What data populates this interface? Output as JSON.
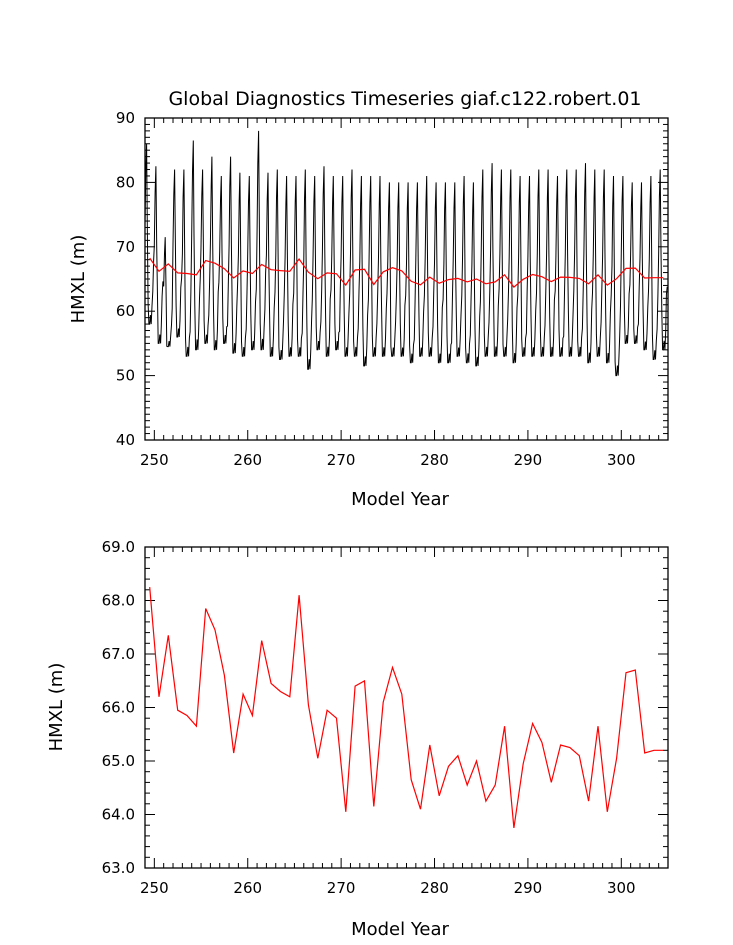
{
  "chart_data": [
    {
      "type": "line",
      "title": "Global Diagnostics Timeseries giaf.c122.robert.01",
      "xlabel": "Model Year",
      "ylabel": "HMXL (m)",
      "xlim": [
        249,
        305
      ],
      "ylim": [
        40,
        90
      ],
      "x_ticks": [
        "250",
        "260",
        "270",
        "280",
        "290",
        "300"
      ],
      "y_ticks": [
        "40",
        "50",
        "60",
        "70",
        "80",
        "90"
      ],
      "grid": false,
      "series": [
        {
          "color": "#000000",
          "style": "monthly",
          "x_start": 249.0,
          "dx": 0.083333,
          "amplitude_note": "seasonal cycle, monthly samples",
          "max_per_year": [
            86,
            82.5,
            71.5,
            82,
            82,
            86.5,
            82,
            84,
            81,
            84,
            81.5,
            81,
            88,
            81.5,
            82,
            81,
            81,
            82,
            81,
            82.5,
            81,
            81,
            82,
            81,
            81,
            81,
            80,
            80,
            80,
            80,
            81,
            80,
            80,
            80,
            81,
            80,
            82,
            83,
            82,
            82,
            81,
            81,
            82,
            82,
            81,
            82,
            82,
            83,
            82,
            82,
            81,
            81,
            80,
            80,
            81,
            82
          ],
          "min_per_year": [
            58,
            55,
            54.5,
            56,
            53,
            54,
            55,
            54,
            55,
            53.5,
            53,
            54,
            54,
            53,
            52.5,
            53,
            53,
            51,
            54,
            53,
            54,
            53,
            53,
            51.5,
            53,
            53,
            53,
            53,
            52,
            53,
            53,
            52,
            52,
            53,
            52,
            51.5,
            53,
            53,
            53,
            52,
            53,
            53,
            53,
            53,
            53,
            53,
            53,
            52,
            53,
            52,
            50,
            55,
            55,
            54,
            52.5,
            54
          ]
        },
        {
          "color": "#ff0000",
          "style": "annual",
          "x": [
            249.5,
            250.5,
            251.5,
            252.5,
            253.5,
            254.5,
            255.5,
            256.5,
            257.5,
            258.5,
            259.5,
            260.5,
            261.5,
            262.5,
            263.5,
            264.5,
            265.5,
            266.5,
            267.5,
            268.5,
            269.5,
            270.5,
            271.5,
            272.5,
            273.5,
            274.5,
            275.5,
            276.5,
            277.5,
            278.5,
            279.5,
            280.5,
            281.5,
            282.5,
            283.5,
            284.5,
            285.5,
            286.5,
            287.5,
            288.5,
            289.5,
            290.5,
            291.5,
            292.5,
            293.5,
            294.5,
            295.5,
            296.5,
            297.5,
            298.5,
            299.5,
            300.5,
            301.5,
            302.5,
            303.5,
            304.5
          ],
          "values": [
            68.25,
            66.2,
            67.35,
            65.95,
            65.85,
            65.65,
            67.85,
            67.45,
            66.6,
            65.15,
            66.25,
            65.85,
            67.25,
            66.45,
            66.3,
            66.2,
            68.1,
            66.05,
            65.05,
            65.95,
            65.8,
            64.05,
            66.4,
            66.5,
            64.15,
            66.1,
            66.75,
            66.25,
            64.65,
            64.1,
            65.3,
            64.35,
            64.9,
            65.1,
            64.55,
            65.0,
            64.25,
            64.55,
            65.65,
            63.75,
            64.95,
            65.7,
            65.35,
            64.6,
            65.3,
            65.25,
            65.1,
            64.25,
            65.65,
            64.05,
            65.05,
            66.65,
            66.7,
            65.15,
            65.2,
            65.2
          ]
        }
      ]
    },
    {
      "type": "line",
      "title": "",
      "xlabel": "Model Year",
      "ylabel": "HMXL (m)",
      "xlim": [
        249,
        305
      ],
      "ylim": [
        63,
        69
      ],
      "x_ticks": [
        "250",
        "260",
        "270",
        "280",
        "290",
        "300"
      ],
      "y_ticks": [
        "63.0",
        "64.0",
        "65.0",
        "66.0",
        "67.0",
        "68.0",
        "69.0"
      ],
      "grid": false,
      "series": [
        {
          "color": "#ff0000",
          "x": [
            249.5,
            250.5,
            251.5,
            252.5,
            253.5,
            254.5,
            255.5,
            256.5,
            257.5,
            258.5,
            259.5,
            260.5,
            261.5,
            262.5,
            263.5,
            264.5,
            265.5,
            266.5,
            267.5,
            268.5,
            269.5,
            270.5,
            271.5,
            272.5,
            273.5,
            274.5,
            275.5,
            276.5,
            277.5,
            278.5,
            279.5,
            280.5,
            281.5,
            282.5,
            283.5,
            284.5,
            285.5,
            286.5,
            287.5,
            288.5,
            289.5,
            290.5,
            291.5,
            292.5,
            293.5,
            294.5,
            295.5,
            296.5,
            297.5,
            298.5,
            299.5,
            300.5,
            301.5,
            302.5,
            303.5,
            304.5
          ],
          "values": [
            68.25,
            66.2,
            67.35,
            65.95,
            65.85,
            65.65,
            67.85,
            67.45,
            66.6,
            65.15,
            66.25,
            65.85,
            67.25,
            66.45,
            66.3,
            66.2,
            68.1,
            66.05,
            65.05,
            65.95,
            65.8,
            64.05,
            66.4,
            66.5,
            64.15,
            66.1,
            66.75,
            66.25,
            64.65,
            64.1,
            65.3,
            64.35,
            64.9,
            65.1,
            64.55,
            65.0,
            64.25,
            64.55,
            65.65,
            63.75,
            64.95,
            65.7,
            65.35,
            64.6,
            65.3,
            65.25,
            65.1,
            64.25,
            65.65,
            64.05,
            65.05,
            66.65,
            66.7,
            65.15,
            65.2,
            65.2
          ]
        }
      ]
    }
  ]
}
